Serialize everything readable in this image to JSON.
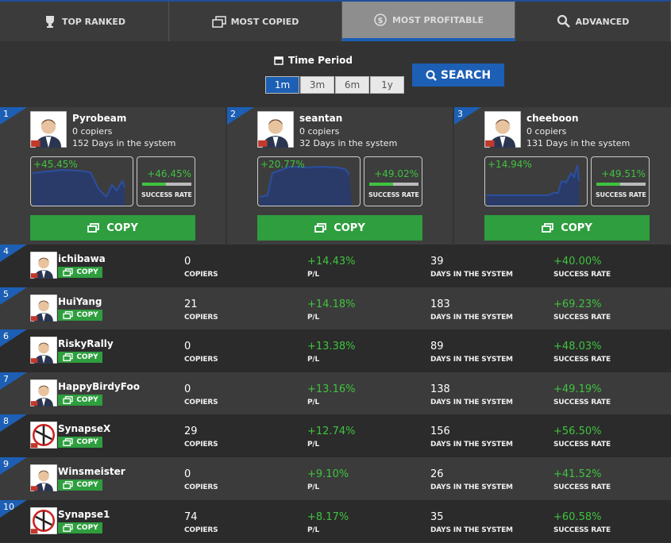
{
  "tabs": [
    "TOP RANKED",
    "MOST COPIED",
    "MOST PROFITABLE",
    "ADVANCED"
  ],
  "filter": {
    "label": "Time Period",
    "periods": [
      "1m",
      "3m",
      "6m",
      "1y"
    ],
    "search": "SEARCH"
  },
  "copy_button": "COPY",
  "labels": {
    "copiers": "COPIERS",
    "pl": "P/L",
    "days": "DAYS IN THE SYSTEM",
    "success": "SUCCESS RATE"
  },
  "top_cards": [
    {
      "rank": "1",
      "name": "Pyrobeam",
      "copiers": "0 copiers",
      "days": "152 Days in the system",
      "pl": "+45.45%",
      "success": "+46.45%"
    },
    {
      "rank": "2",
      "name": "seantan",
      "copiers": "0 copiers",
      "days": "32 Days in the system",
      "pl": "+20.77%",
      "success": "+49.02%"
    },
    {
      "rank": "3",
      "name": "cheeboon",
      "copiers": "0 copiers",
      "days": "131 Days in the system",
      "pl": "+14.94%",
      "success": "+49.51%"
    }
  ],
  "rows": [
    {
      "rank": "4",
      "name": "ichibawa",
      "copiers": "0",
      "pl": "+14.43%",
      "days": "39",
      "success": "+40.00%"
    },
    {
      "rank": "5",
      "name": "HuiYang",
      "copiers": "21",
      "pl": "+14.18%",
      "days": "183",
      "success": "+69.23%"
    },
    {
      "rank": "6",
      "name": "RiskyRally",
      "copiers": "0",
      "pl": "+13.38%",
      "days": "89",
      "success": "+48.03%"
    },
    {
      "rank": "7",
      "name": "HappyBirdyFoo",
      "copiers": "0",
      "pl": "+13.16%",
      "days": "138",
      "success": "+49.19%"
    },
    {
      "rank": "8",
      "name": "SynapseX",
      "copiers": "29",
      "pl": "+12.74%",
      "days": "156",
      "success": "+56.50%"
    },
    {
      "rank": "9",
      "name": "Winsmeister",
      "copiers": "0",
      "pl": "+9.10%",
      "days": "26",
      "success": "+41.52%"
    },
    {
      "rank": "10",
      "name": "Synapse1",
      "copiers": "74",
      "pl": "+8.17%",
      "days": "35",
      "success": "+60.58%"
    }
  ]
}
